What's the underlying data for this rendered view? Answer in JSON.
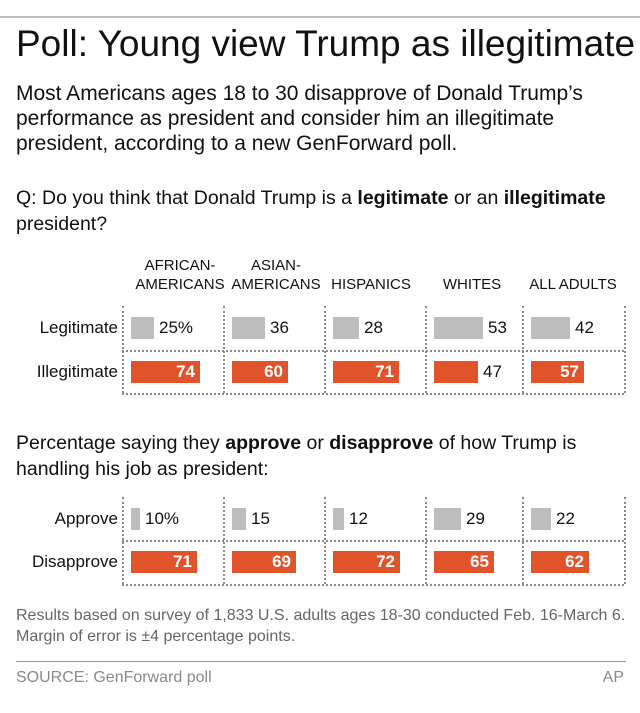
{
  "title": "Poll: Young view Trump as illegitimate",
  "subtitle": "Most Americans ages 18 to 30 disapprove of Donald Trump’s performance as president and consider him an illegitimate president, according to a new GenForward poll.",
  "q1": {
    "pre": "Q: Do you think that Donald Trump is a ",
    "b1": "legitimate",
    "mid": " or an ",
    "b2": "illegitimate",
    "post": " president?"
  },
  "q2": {
    "pre": "Percentage saying they ",
    "b1": "approve",
    "mid": " or ",
    "b2": "disapprove",
    "post": " of how Trump is handling his job as president:"
  },
  "note": "Results based on survey of 1,833 U.S. adults ages 18-30 conducted Feb. 16-March 6. Margin of error is ±4 percentage points.",
  "source": "SOURCE: GenForward poll",
  "credit": "AP",
  "colors": {
    "gray": "#bdbdbd",
    "orange": "#e0532b"
  },
  "chart_data": [
    {
      "type": "bar",
      "categories": [
        [
          "AFRICAN-",
          "AMERICANS"
        ],
        [
          "ASIAN-",
          "AMERICANS"
        ],
        [
          "HISPANICS"
        ],
        [
          "WHITES"
        ],
        [
          "ALL ADULTS"
        ]
      ],
      "series": [
        {
          "name": "Legitimate",
          "values": [
            25,
            36,
            28,
            53,
            42
          ],
          "labels": [
            "25%",
            "36",
            "28",
            "53",
            "42"
          ],
          "color": "#bdbdbd"
        },
        {
          "name": "Illegitimate",
          "values": [
            74,
            60,
            71,
            47,
            57
          ],
          "labels": [
            "74",
            "60",
            "71",
            "47",
            "57"
          ],
          "color": "#e0532b"
        }
      ],
      "ylim": [
        0,
        100
      ]
    },
    {
      "type": "bar",
      "categories": [
        [
          "AFRICAN-",
          "AMERICANS"
        ],
        [
          "ASIAN-",
          "AMERICANS"
        ],
        [
          "HISPANICS"
        ],
        [
          "WHITES"
        ],
        [
          "ALL ADULTS"
        ]
      ],
      "series": [
        {
          "name": "Approve",
          "values": [
            10,
            15,
            12,
            29,
            22
          ],
          "labels": [
            "10%",
            "15",
            "12",
            "29",
            "22"
          ],
          "color": "#bdbdbd"
        },
        {
          "name": "Disapprove",
          "values": [
            71,
            69,
            72,
            65,
            62
          ],
          "labels": [
            "71",
            "69",
            "72",
            "65",
            "62"
          ],
          "color": "#e0532b"
        }
      ],
      "ylim": [
        0,
        100
      ]
    }
  ]
}
